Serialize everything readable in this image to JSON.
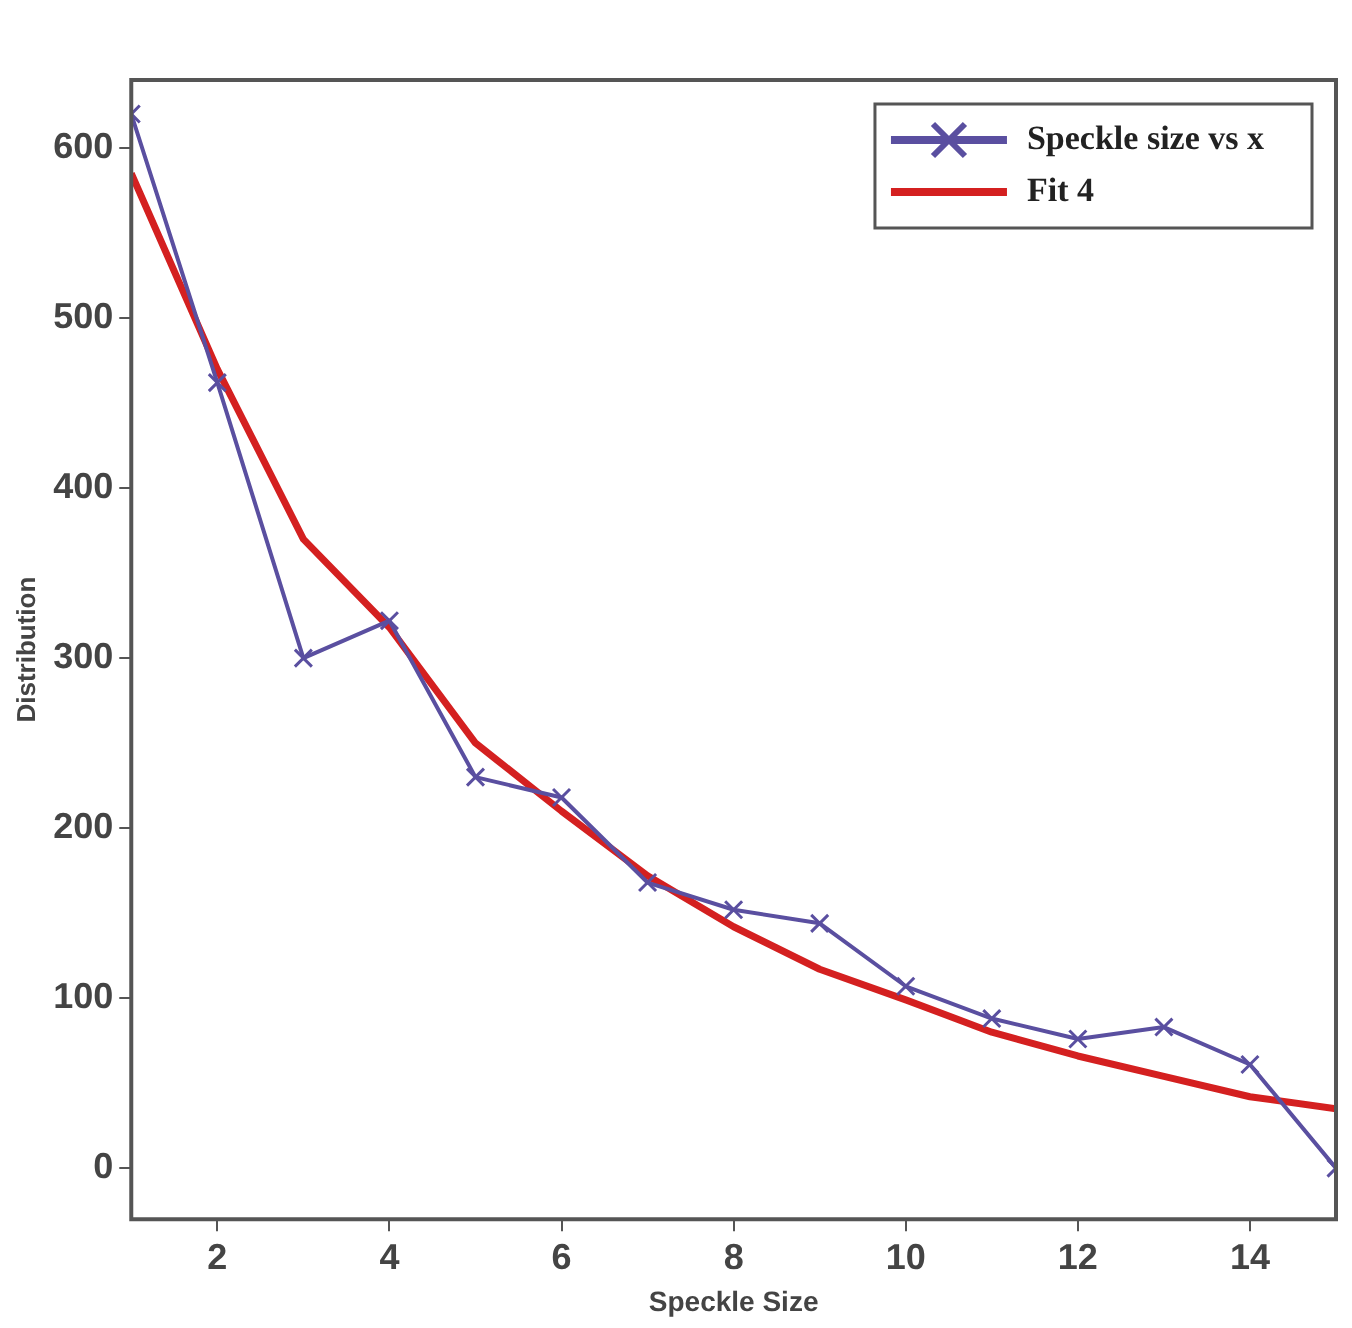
{
  "chart_data": {
    "type": "line",
    "xlabel": "Speckle Size",
    "ylabel": "Distribution",
    "x": [
      1,
      2,
      3,
      4,
      5,
      6,
      7,
      8,
      9,
      10,
      11,
      12,
      13,
      14,
      15
    ],
    "series": [
      {
        "name": "Speckle size vs x",
        "color": "#5a4fa0",
        "marker": "cross",
        "values": [
          620,
          462,
          300,
          322,
          230,
          218,
          168,
          152,
          144,
          107,
          88,
          76,
          83,
          61,
          0
        ]
      },
      {
        "name": "Fit 4",
        "color": "#d42020",
        "marker": "none",
        "x": [
          1,
          2,
          3,
          4,
          5,
          6,
          7,
          8,
          9,
          10,
          11,
          12,
          13,
          14,
          15
        ],
        "values": [
          585,
          470,
          370,
          318,
          250,
          210,
          172,
          142,
          117,
          99,
          80,
          66,
          54,
          42,
          35
        ]
      }
    ],
    "xlim": [
      1,
      15
    ],
    "xticks": [
      2,
      4,
      6,
      8,
      10,
      12,
      14
    ],
    "ylim": [
      -30,
      640
    ],
    "yticks": [
      0,
      100,
      200,
      300,
      400,
      500,
      600
    ],
    "grid": false,
    "legend": "top right"
  }
}
